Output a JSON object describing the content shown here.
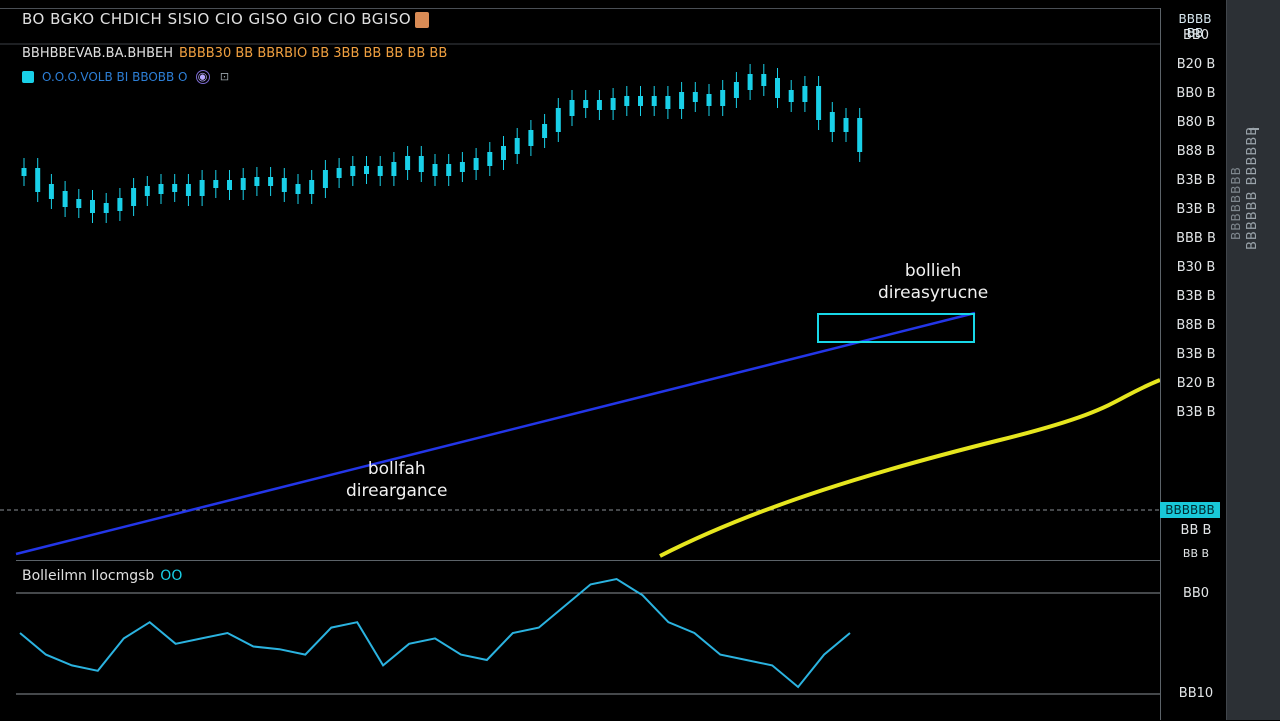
{
  "header": {
    "title": "BO BGKO CHDICH SISIO CIO GISO GIO CIO BGISO",
    "ohlc_symbol": "BBHBBEVAB.BA.BHBEH",
    "ohlc_values": "BBBB30 BB BBRBIO BB 3BB BB BB BB BB",
    "indicator_label": "O.O.O.VOLB BI BBOBB O"
  },
  "axis": {
    "top_label_line1": "BBBB",
    "top_label_line2": "BB",
    "price_labels": [
      "BB0",
      "B20 B",
      "BB0 B",
      "B80 B",
      "B88 B",
      "B3B B",
      "B3B B",
      "BBB B",
      "B30 B",
      "B3B B",
      "B8B B",
      "B3B B",
      "B20 B",
      "B3B B"
    ],
    "current_price": "BBBBBB",
    "current_under": "BB B",
    "current_under2": "BB B"
  },
  "annotations": {
    "bullish_upper_line1": "bollieh",
    "bullish_upper_line2": "direasyrucne",
    "bullish_lower_line1": "bollfah",
    "bullish_lower_line2": "direargance"
  },
  "oscillator": {
    "title": "Bolleilmn Ilocmgsb",
    "value": "OO",
    "upper_label": "BB0",
    "lower_label": "BB10"
  },
  "right_rail": {
    "col1": "BBBBBB BBBBBB",
    "col2": "BBBBBBBB"
  },
  "colors": {
    "candle": "#19d0e8",
    "trendline": "#2336e8",
    "ma_line": "#e6e61e",
    "osc_line": "#2bb3e0",
    "highlight_box": "#18d8e8"
  },
  "chart_data": {
    "type": "line",
    "series": [
      {
        "values": [
          388,
          372,
          365,
          357,
          356,
          351,
          353,
          358,
          368,
          370,
          372,
          372,
          368,
          376,
          376,
          374,
          378,
          379,
          378,
          372,
          370,
          376,
          386,
          388,
          390,
          390,
          388,
          394,
          400,
          392,
          388,
          392,
          394,
          398,
          404,
          410,
          418,
          426,
          432,
          448,
          456,
          456,
          454,
          458,
          460,
          458,
          460,
          455,
          464,
          462,
          458,
          466,
          474,
          482,
          478,
          466,
          462,
          470,
          444,
          432,
          438,
          412
        ]
      }
    ],
    "oscillator": [
      30,
      22,
      18,
      16,
      28,
      34,
      26,
      28,
      30,
      25,
      24,
      22,
      32,
      34,
      18,
      26,
      28,
      22,
      20,
      30,
      32,
      40,
      48,
      50,
      44,
      34,
      30,
      22,
      20,
      18,
      10,
      22,
      30
    ]
  }
}
